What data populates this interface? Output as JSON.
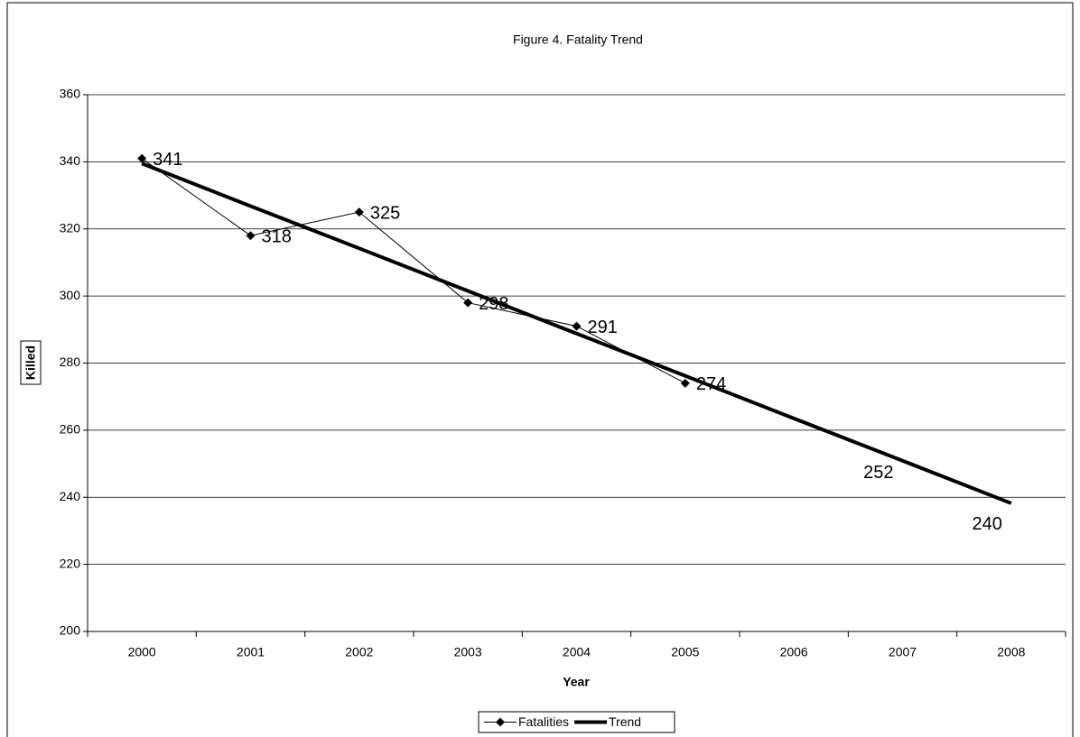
{
  "chart_data": {
    "type": "line",
    "title": "Figure 4. Fatality Trend",
    "x_label": "Year",
    "y_label": "Killed",
    "categories": [
      "2000",
      "2001",
      "2002",
      "2003",
      "2004",
      "2005",
      "2006",
      "2007",
      "2008"
    ],
    "series": [
      {
        "name": "Fatalities",
        "color": "#000000",
        "marker": "diamond",
        "data_labels": true,
        "values": [
          341,
          318,
          325,
          298,
          291,
          274,
          null,
          null,
          null
        ]
      },
      {
        "name": "Trend",
        "color": "#000000",
        "marker": "none",
        "data_labels": false,
        "values": [
          339.5,
          326.8,
          314.2,
          301.5,
          288.8,
          276.2,
          263.5,
          250.9,
          238.2
        ]
      }
    ],
    "annotations": [
      "252",
      "240"
    ],
    "ylim": [
      200,
      360
    ],
    "yticks": [
      200,
      220,
      240,
      260,
      280,
      300,
      320,
      340,
      360
    ],
    "grid": true,
    "legend": "bottom"
  }
}
